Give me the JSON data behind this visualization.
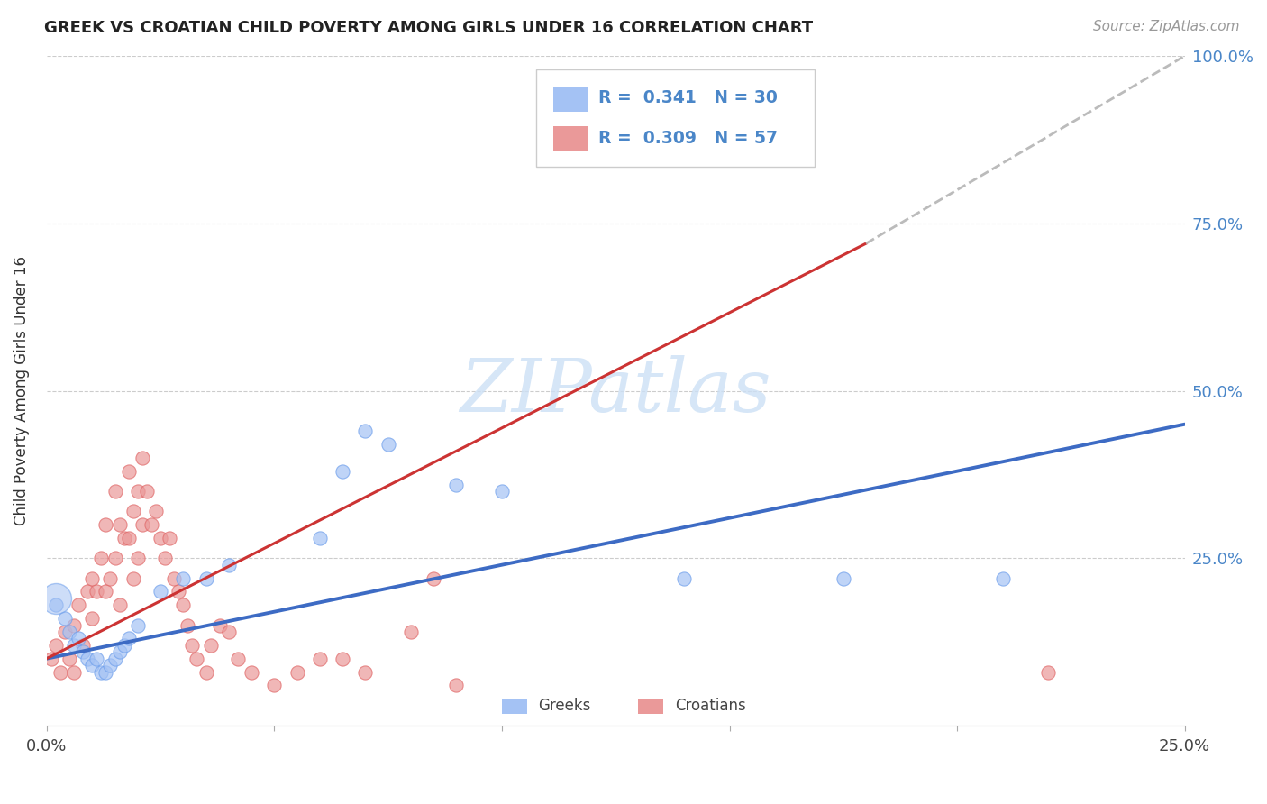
{
  "title": "GREEK VS CROATIAN CHILD POVERTY AMONG GIRLS UNDER 16 CORRELATION CHART",
  "source": "Source: ZipAtlas.com",
  "ylabel": "Child Poverty Among Girls Under 16",
  "xlim": [
    0.0,
    0.25
  ],
  "ylim": [
    0.0,
    1.0
  ],
  "greek_R": 0.341,
  "greek_N": 30,
  "croatian_R": 0.309,
  "croatian_N": 57,
  "greek_color": "#a4c2f4",
  "greek_edge_color": "#6d9eeb",
  "croatian_color": "#ea9999",
  "croatian_edge_color": "#e06666",
  "greek_line_color": "#3d6bc4",
  "croatian_line_color": "#cc3333",
  "dashed_line_color": "#bbbbbb",
  "watermark_color": "#cce0f5",
  "background_color": "#ffffff",
  "grid_color": "#cccccc",
  "greek_scatter": [
    [
      0.002,
      0.18
    ],
    [
      0.004,
      0.16
    ],
    [
      0.005,
      0.14
    ],
    [
      0.006,
      0.12
    ],
    [
      0.007,
      0.13
    ],
    [
      0.008,
      0.11
    ],
    [
      0.009,
      0.1
    ],
    [
      0.01,
      0.09
    ],
    [
      0.011,
      0.1
    ],
    [
      0.012,
      0.08
    ],
    [
      0.013,
      0.08
    ],
    [
      0.014,
      0.09
    ],
    [
      0.015,
      0.1
    ],
    [
      0.016,
      0.11
    ],
    [
      0.017,
      0.12
    ],
    [
      0.018,
      0.13
    ],
    [
      0.02,
      0.15
    ],
    [
      0.025,
      0.2
    ],
    [
      0.03,
      0.22
    ],
    [
      0.035,
      0.22
    ],
    [
      0.04,
      0.24
    ],
    [
      0.06,
      0.28
    ],
    [
      0.065,
      0.38
    ],
    [
      0.07,
      0.44
    ],
    [
      0.075,
      0.42
    ],
    [
      0.09,
      0.36
    ],
    [
      0.1,
      0.35
    ],
    [
      0.14,
      0.22
    ],
    [
      0.175,
      0.22
    ],
    [
      0.21,
      0.22
    ]
  ],
  "croatian_scatter": [
    [
      0.001,
      0.1
    ],
    [
      0.002,
      0.12
    ],
    [
      0.003,
      0.08
    ],
    [
      0.004,
      0.14
    ],
    [
      0.005,
      0.1
    ],
    [
      0.006,
      0.15
    ],
    [
      0.006,
      0.08
    ],
    [
      0.007,
      0.18
    ],
    [
      0.008,
      0.12
    ],
    [
      0.009,
      0.2
    ],
    [
      0.01,
      0.22
    ],
    [
      0.01,
      0.16
    ],
    [
      0.011,
      0.2
    ],
    [
      0.012,
      0.25
    ],
    [
      0.013,
      0.3
    ],
    [
      0.013,
      0.2
    ],
    [
      0.014,
      0.22
    ],
    [
      0.015,
      0.35
    ],
    [
      0.015,
      0.25
    ],
    [
      0.016,
      0.3
    ],
    [
      0.016,
      0.18
    ],
    [
      0.017,
      0.28
    ],
    [
      0.018,
      0.38
    ],
    [
      0.018,
      0.28
    ],
    [
      0.019,
      0.32
    ],
    [
      0.019,
      0.22
    ],
    [
      0.02,
      0.35
    ],
    [
      0.02,
      0.25
    ],
    [
      0.021,
      0.4
    ],
    [
      0.021,
      0.3
    ],
    [
      0.022,
      0.35
    ],
    [
      0.023,
      0.3
    ],
    [
      0.024,
      0.32
    ],
    [
      0.025,
      0.28
    ],
    [
      0.026,
      0.25
    ],
    [
      0.027,
      0.28
    ],
    [
      0.028,
      0.22
    ],
    [
      0.029,
      0.2
    ],
    [
      0.03,
      0.18
    ],
    [
      0.031,
      0.15
    ],
    [
      0.032,
      0.12
    ],
    [
      0.033,
      0.1
    ],
    [
      0.035,
      0.08
    ],
    [
      0.036,
      0.12
    ],
    [
      0.038,
      0.15
    ],
    [
      0.04,
      0.14
    ],
    [
      0.042,
      0.1
    ],
    [
      0.045,
      0.08
    ],
    [
      0.05,
      0.06
    ],
    [
      0.055,
      0.08
    ],
    [
      0.06,
      0.1
    ],
    [
      0.065,
      0.1
    ],
    [
      0.07,
      0.08
    ],
    [
      0.08,
      0.14
    ],
    [
      0.085,
      0.22
    ],
    [
      0.09,
      0.06
    ],
    [
      0.22,
      0.08
    ]
  ],
  "big_greek_marker": [
    0.002,
    0.19
  ],
  "big_greek_size": 600
}
